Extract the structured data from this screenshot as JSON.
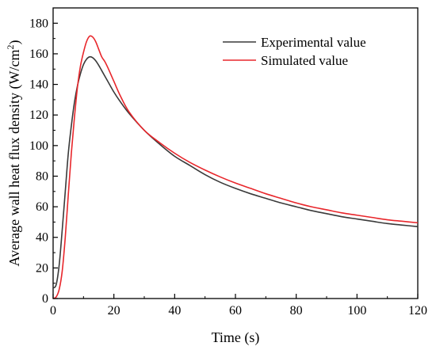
{
  "chart_data": {
    "type": "line",
    "title": "",
    "xlabel": "Time (s)",
    "ylabel_main": "Average wall heat flux density (W/cm",
    "ylabel_sup": "2",
    "ylabel_close": ")",
    "xlim": [
      0,
      120
    ],
    "ylim": [
      0,
      190
    ],
    "xticks": [
      0,
      20,
      40,
      60,
      80,
      100,
      120
    ],
    "yticks": [
      0,
      20,
      40,
      60,
      80,
      100,
      120,
      140,
      160,
      180
    ],
    "grid": false,
    "legend_position": "top-right",
    "series": [
      {
        "name": "Experimental value",
        "color": "#3a3a3a",
        "points": [
          [
            0,
            7
          ],
          [
            1,
            9
          ],
          [
            2,
            22
          ],
          [
            3,
            45
          ],
          [
            4,
            70
          ],
          [
            5,
            95
          ],
          [
            6,
            113
          ],
          [
            7,
            128
          ],
          [
            8,
            139
          ],
          [
            9,
            147
          ],
          [
            10,
            153
          ],
          [
            11,
            156.5
          ],
          [
            12,
            158
          ],
          [
            13,
            157.5
          ],
          [
            14,
            155.5
          ],
          [
            15,
            152.5
          ],
          [
            16,
            149
          ],
          [
            18,
            142
          ],
          [
            20,
            135
          ],
          [
            22,
            129
          ],
          [
            25,
            121
          ],
          [
            30,
            110
          ],
          [
            35,
            101
          ],
          [
            40,
            93
          ],
          [
            45,
            87
          ],
          [
            50,
            81
          ],
          [
            55,
            76
          ],
          [
            60,
            72
          ],
          [
            65,
            68.5
          ],
          [
            70,
            65.5
          ],
          [
            75,
            62.5
          ],
          [
            80,
            60
          ],
          [
            85,
            57.5
          ],
          [
            90,
            55.5
          ],
          [
            95,
            53.5
          ],
          [
            100,
            52
          ],
          [
            105,
            50.5
          ],
          [
            110,
            49
          ],
          [
            115,
            48
          ],
          [
            120,
            47
          ]
        ]
      },
      {
        "name": "Simulated value",
        "color": "#e8262b",
        "points": [
          [
            0,
            0
          ],
          [
            1,
            1
          ],
          [
            2,
            6
          ],
          [
            3,
            18
          ],
          [
            4,
            40
          ],
          [
            5,
            68
          ],
          [
            6,
            95
          ],
          [
            7,
            118
          ],
          [
            8,
            138
          ],
          [
            9,
            152
          ],
          [
            10,
            161
          ],
          [
            11,
            168
          ],
          [
            12,
            171.5
          ],
          [
            13,
            171
          ],
          [
            14,
            168
          ],
          [
            15,
            163
          ],
          [
            16,
            158
          ],
          [
            17,
            155
          ],
          [
            18,
            151
          ],
          [
            20,
            142
          ],
          [
            22,
            133
          ],
          [
            25,
            122
          ],
          [
            30,
            110
          ],
          [
            35,
            102
          ],
          [
            40,
            95
          ],
          [
            45,
            89
          ],
          [
            50,
            84
          ],
          [
            55,
            79.5
          ],
          [
            60,
            75.5
          ],
          [
            65,
            72
          ],
          [
            70,
            68.5
          ],
          [
            75,
            65.5
          ],
          [
            80,
            62.5
          ],
          [
            85,
            60
          ],
          [
            90,
            58
          ],
          [
            95,
            56
          ],
          [
            100,
            54.5
          ],
          [
            105,
            53
          ],
          [
            110,
            51.5
          ],
          [
            115,
            50.5
          ],
          [
            120,
            49.5
          ]
        ]
      }
    ]
  }
}
